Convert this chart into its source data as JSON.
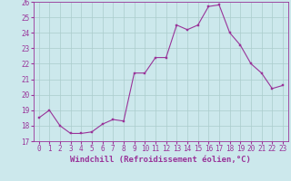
{
  "x": [
    0,
    1,
    2,
    3,
    4,
    5,
    6,
    7,
    8,
    9,
    10,
    11,
    12,
    13,
    14,
    15,
    16,
    17,
    18,
    19,
    20,
    21,
    22,
    23
  ],
  "y": [
    18.5,
    19.0,
    18.0,
    17.5,
    17.5,
    17.6,
    18.1,
    18.4,
    18.3,
    21.4,
    21.4,
    22.4,
    22.4,
    24.5,
    24.2,
    24.5,
    25.7,
    25.8,
    24.0,
    23.2,
    22.0,
    21.4,
    20.4,
    20.6
  ],
  "line_color": "#993399",
  "marker": "s",
  "marker_size": 2.0,
  "bg_color": "#cce8ec",
  "grid_color": "#aacccc",
  "xlabel": "Windchill (Refroidissement éolien,°C)",
  "ylim": [
    17,
    26
  ],
  "xlim_min": -0.5,
  "xlim_max": 23.5,
  "yticks": [
    17,
    18,
    19,
    20,
    21,
    22,
    23,
    24,
    25,
    26
  ],
  "xticks": [
    0,
    1,
    2,
    3,
    4,
    5,
    6,
    7,
    8,
    9,
    10,
    11,
    12,
    13,
    14,
    15,
    16,
    17,
    18,
    19,
    20,
    21,
    22,
    23
  ],
  "tick_label_size": 5.5,
  "xlabel_size": 6.5,
  "line_color_hex": "#993399"
}
